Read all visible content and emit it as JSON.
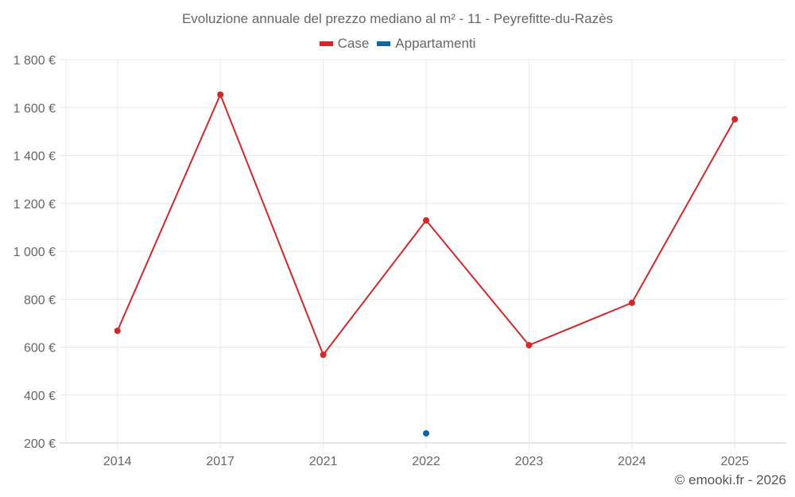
{
  "title": "Evoluzione annuale del prezzo mediano al m² - 11 - Peyrefitte-du-Razès",
  "legend": [
    {
      "label": "Case",
      "color": "#d62728"
    },
    {
      "label": "Appartamenti",
      "color": "#1565a0"
    }
  ],
  "credit": "© emooki.fr - 2026",
  "colors": {
    "case": "#d62728",
    "appartamenti": "#1565a0",
    "grid": "#e8e8e8",
    "text": "#666666"
  },
  "chart_data": {
    "type": "line",
    "title": "Evoluzione annuale del prezzo mediano al m² - 11 - Peyrefitte-du-Razès",
    "xlabel": "",
    "ylabel": "",
    "categories": [
      "2014",
      "2017",
      "2021",
      "2022",
      "2023",
      "2024",
      "2025"
    ],
    "series": [
      {
        "name": "Case",
        "color": "#d62728",
        "values": [
          668,
          1654,
          568,
          1129,
          608,
          785,
          1551
        ]
      },
      {
        "name": "Appartamenti",
        "color": "#1565a0",
        "values": [
          null,
          null,
          null,
          240,
          null,
          null,
          null
        ]
      }
    ],
    "ylim": [
      200,
      1800
    ],
    "yticks": [
      200,
      400,
      600,
      800,
      1000,
      1200,
      1400,
      1600,
      1800
    ],
    "ytick_labels": [
      "200 €",
      "400 €",
      "600 €",
      "800 €",
      "1 000 €",
      "1 200 €",
      "1 400 €",
      "1 600 €",
      "1 800 €"
    ],
    "grid": true,
    "legend_position": "top"
  }
}
